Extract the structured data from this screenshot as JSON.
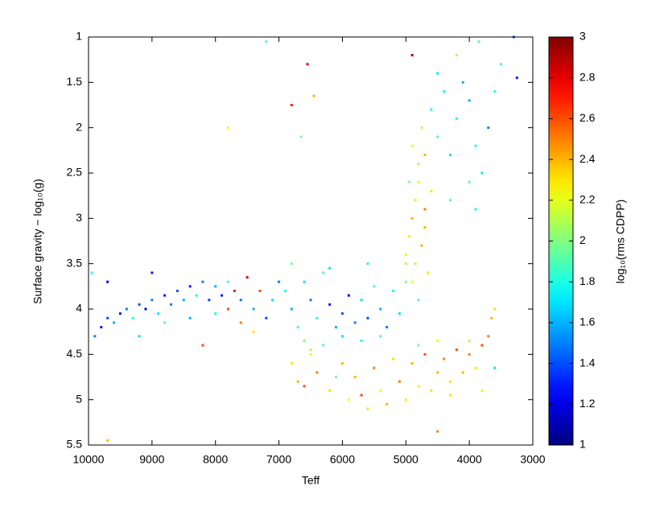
{
  "chart_data": {
    "type": "scatter",
    "xlabel": "Teff",
    "ylabel": "Surface gravity − log₁₀(g)",
    "colorbar_label": "log₁₀(rms CDPP)",
    "xlim": [
      10000,
      3000
    ],
    "xticks": [
      10000,
      9000,
      8000,
      7000,
      6000,
      5000,
      4000,
      3000
    ],
    "ylim": [
      5.5,
      1
    ],
    "yticks": [
      1,
      1.5,
      2,
      2.5,
      3,
      3.5,
      4,
      4.5,
      5,
      5.5
    ],
    "clim": [
      1,
      3
    ],
    "cticks": [
      1,
      1.2,
      1.4,
      1.6,
      1.8,
      2,
      2.2,
      2.4,
      2.6,
      2.8,
      3
    ],
    "colormap": "jet",
    "x": [
      9900,
      9800,
      9700,
      9600,
      9500,
      9400,
      9300,
      9200,
      9100,
      9000,
      8900,
      8800,
      8700,
      8600,
      8500,
      8400,
      8300,
      8200,
      8100,
      8000,
      7900,
      7800,
      7700,
      7600,
      7500,
      7400,
      7300,
      7200,
      7100,
      7000,
      9950,
      9700,
      9200,
      8800,
      8400,
      8000,
      7600,
      7400,
      7800,
      9000,
      6900,
      6800,
      6700,
      6600,
      6500,
      6400,
      6300,
      6200,
      6100,
      6000,
      5900,
      5800,
      5700,
      5600,
      5500,
      5400,
      5300,
      5200,
      5100,
      5000,
      6600,
      6300,
      6000,
      5700,
      5400,
      6800,
      6200,
      5600,
      5000,
      6500,
      6800,
      6700,
      6500,
      6400,
      6200,
      6000,
      5900,
      5800,
      5600,
      5500,
      5400,
      5300,
      5200,
      5100,
      5000,
      4900,
      4800,
      4700,
      4600,
      4500,
      4400,
      4300,
      4200,
      4100,
      4000,
      3900,
      3800,
      3700,
      3650,
      3600,
      4500,
      4000,
      5700,
      6100,
      4800,
      3800,
      4300,
      6600,
      5000,
      4950,
      4900,
      4850,
      4800,
      4750,
      4700,
      4800,
      4900,
      4750,
      4650,
      4700,
      4850,
      4950,
      4600,
      4900,
      4800,
      4700,
      4600,
      4500,
      4400,
      4300,
      4200,
      4100,
      4000,
      3900,
      4300,
      4500,
      4000,
      3900,
      3800,
      3700,
      3600,
      3500,
      3300,
      3250,
      4200,
      3850,
      7200,
      6550,
      6800,
      6450,
      7800,
      4900,
      9700,
      4500,
      3600,
      6650,
      8200
    ],
    "y": [
      4.3,
      4.2,
      4.1,
      4.15,
      4.05,
      4.0,
      4.1,
      3.95,
      4.0,
      3.9,
      4.05,
      3.85,
      3.95,
      3.8,
      3.9,
      3.75,
      3.85,
      3.7,
      3.9,
      3.75,
      3.85,
      3.7,
      3.8,
      3.9,
      3.65,
      4.0,
      3.8,
      4.1,
      3.9,
      3.7,
      3.6,
      3.7,
      4.3,
      4.15,
      4.1,
      4.05,
      4.15,
      4.25,
      4.0,
      3.6,
      3.8,
      4.0,
      4.2,
      3.7,
      3.9,
      4.1,
      3.6,
      3.95,
      4.2,
      4.05,
      3.85,
      4.15,
      3.9,
      4.1,
      3.75,
      4.0,
      4.2,
      3.8,
      4.05,
      3.7,
      4.35,
      4.4,
      4.3,
      4.35,
      4.3,
      3.5,
      3.55,
      3.5,
      3.5,
      4.45,
      4.6,
      4.8,
      4.5,
      4.7,
      4.9,
      4.6,
      5.0,
      4.75,
      5.1,
      4.65,
      4.9,
      5.05,
      4.55,
      4.8,
      5.0,
      4.6,
      4.85,
      4.5,
      4.9,
      4.7,
      4.55,
      4.8,
      4.45,
      4.7,
      4.5,
      4.65,
      4.4,
      4.3,
      4.1,
      4.0,
      4.35,
      4.35,
      4.95,
      4.75,
      4.4,
      4.9,
      4.95,
      4.85,
      3.4,
      3.2,
      3.0,
      2.8,
      2.6,
      3.3,
      2.9,
      2.4,
      2.2,
      2.0,
      3.6,
      3.1,
      3.5,
      2.6,
      2.7,
      3.7,
      3.9,
      2.3,
      1.8,
      2.1,
      1.6,
      2.3,
      1.9,
      1.5,
      2.6,
      2.2,
      2.8,
      1.4,
      1.7,
      2.9,
      2.5,
      2.0,
      1.6,
      1.3,
      1.0,
      1.45,
      1.2,
      1.05,
      1.05,
      1.3,
      1.75,
      1.65,
      2.0,
      1.2,
      5.45,
      5.35,
      4.65,
      2.1,
      4.4
    ],
    "color_values": [
      1.5,
      1.3,
      1.4,
      1.6,
      1.3,
      1.5,
      1.8,
      1.4,
      1.2,
      1.5,
      1.7,
      1.3,
      1.5,
      1.4,
      1.6,
      1.3,
      1.8,
      1.5,
      1.4,
      1.6,
      1.3,
      1.9,
      2.7,
      1.5,
      2.8,
      1.6,
      2.6,
      1.4,
      1.7,
      1.5,
      1.8,
      1.2,
      1.7,
      1.9,
      1.6,
      1.8,
      2.5,
      2.3,
      2.6,
      1.3,
      1.8,
      1.6,
      1.9,
      1.7,
      1.5,
      1.8,
      1.9,
      1.3,
      1.6,
      1.4,
      1.2,
      1.5,
      1.7,
      1.4,
      1.9,
      1.6,
      1.5,
      1.8,
      1.7,
      2.0,
      2.0,
      1.9,
      1.7,
      1.8,
      1.9,
      2.0,
      1.7,
      1.8,
      2.1,
      2.1,
      2.3,
      2.4,
      2.2,
      2.5,
      2.3,
      2.4,
      2.2,
      2.4,
      2.3,
      2.5,
      2.2,
      2.4,
      2.3,
      2.5,
      2.3,
      2.4,
      2.2,
      2.6,
      2.3,
      2.4,
      2.5,
      2.3,
      2.6,
      2.4,
      2.5,
      2.3,
      2.6,
      2.5,
      2.4,
      2.3,
      2.2,
      2.1,
      2.6,
      2.0,
      2.0,
      2.2,
      2.3,
      2.6,
      2.2,
      2.3,
      2.4,
      2.3,
      2.2,
      2.4,
      2.5,
      2.1,
      2.2,
      2.1,
      2.3,
      2.4,
      2.1,
      2.0,
      2.3,
      2.2,
      1.9,
      2.4,
      1.8,
      1.9,
      1.8,
      1.7,
      1.8,
      1.6,
      1.9,
      1.8,
      1.9,
      1.7,
      1.6,
      1.8,
      1.7,
      1.5,
      1.8,
      1.9,
      1.4,
      1.3,
      2.1,
      1.9,
      1.9,
      2.8,
      2.7,
      2.4,
      2.2,
      2.9,
      2.4,
      2.5,
      1.7,
      2.0,
      2.6
    ]
  }
}
